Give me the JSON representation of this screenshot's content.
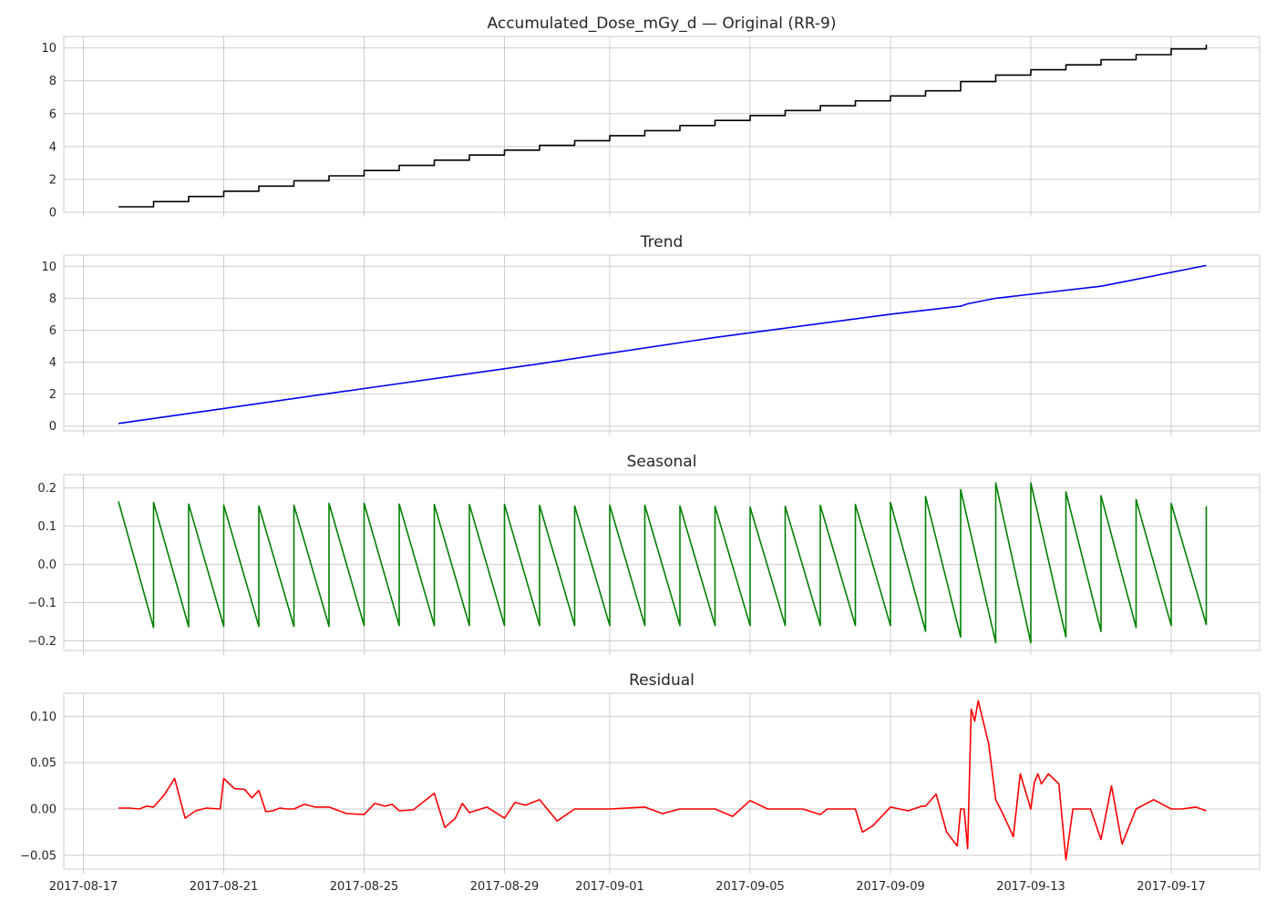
{
  "chart_data": [
    {
      "type": "line",
      "id": "original",
      "title": "Accumulated_Dose_mGy_d — Original (RR-9)",
      "color": "#000000",
      "ylim": [
        0,
        10.7
      ],
      "yticks": [
        0,
        2,
        4,
        6,
        8,
        10
      ],
      "ytick_labels": [
        "0",
        "2",
        "4",
        "6",
        "8",
        "10"
      ],
      "model": "step",
      "steps": [
        0.33,
        0.65,
        0.96,
        1.28,
        1.59,
        1.91,
        2.22,
        2.54,
        2.85,
        3.17,
        3.48,
        3.78,
        4.07,
        4.36,
        4.66,
        4.97,
        5.28,
        5.59,
        5.89,
        6.19,
        6.48,
        6.78,
        7.08,
        7.39,
        7.95,
        8.35,
        8.67,
        8.97,
        9.28,
        9.59,
        9.94,
        10.2
      ]
    },
    {
      "type": "line",
      "id": "trend",
      "title": "Trend",
      "color": "#0000ee",
      "ylim": [
        -0.3,
        10.7
      ],
      "yticks": [
        0,
        2,
        4,
        6,
        8,
        10
      ],
      "ytick_labels": [
        "0",
        "2",
        "4",
        "6",
        "8",
        "10"
      ],
      "model": "points",
      "points_x_days": [
        0,
        3,
        7,
        12,
        17,
        22,
        24,
        24.2,
        25,
        26,
        28,
        31
      ],
      "points_y": [
        0.17,
        1.1,
        2.35,
        3.9,
        5.55,
        7.0,
        7.5,
        7.65,
        8.0,
        8.25,
        8.75,
        10.05
      ]
    },
    {
      "type": "line",
      "id": "seasonal",
      "title": "Seasonal",
      "color": "#008000",
      "ylim": [
        -0.225,
        0.235
      ],
      "yticks": [
        0.2,
        0.1,
        0.0,
        -0.1,
        -0.2
      ],
      "ytick_labels": [
        "0.2",
        "0.1",
        "0.0",
        "−0.1",
        "−0.2"
      ],
      "model": "sawtooth",
      "cycles": [
        {
          "hi": 0.165,
          "lo": -0.165
        },
        {
          "hi": 0.162,
          "lo": -0.163
        },
        {
          "hi": 0.158,
          "lo": -0.162
        },
        {
          "hi": 0.155,
          "lo": -0.162
        },
        {
          "hi": 0.153,
          "lo": -0.162
        },
        {
          "hi": 0.155,
          "lo": -0.162
        },
        {
          "hi": 0.16,
          "lo": -0.16
        },
        {
          "hi": 0.16,
          "lo": -0.16
        },
        {
          "hi": 0.158,
          "lo": -0.16
        },
        {
          "hi": 0.157,
          "lo": -0.16
        },
        {
          "hi": 0.157,
          "lo": -0.16
        },
        {
          "hi": 0.157,
          "lo": -0.16
        },
        {
          "hi": 0.155,
          "lo": -0.16
        },
        {
          "hi": 0.153,
          "lo": -0.16
        },
        {
          "hi": 0.155,
          "lo": -0.16
        },
        {
          "hi": 0.155,
          "lo": -0.16
        },
        {
          "hi": 0.153,
          "lo": -0.16
        },
        {
          "hi": 0.152,
          "lo": -0.16
        },
        {
          "hi": 0.15,
          "lo": -0.16
        },
        {
          "hi": 0.152,
          "lo": -0.16
        },
        {
          "hi": 0.155,
          "lo": -0.16
        },
        {
          "hi": 0.157,
          "lo": -0.16
        },
        {
          "hi": 0.162,
          "lo": -0.175
        },
        {
          "hi": 0.178,
          "lo": -0.19
        },
        {
          "hi": 0.196,
          "lo": -0.205
        },
        {
          "hi": 0.213,
          "lo": -0.205
        },
        {
          "hi": 0.213,
          "lo": -0.19
        },
        {
          "hi": 0.19,
          "lo": -0.175
        },
        {
          "hi": 0.18,
          "lo": -0.165
        },
        {
          "hi": 0.17,
          "lo": -0.16
        },
        {
          "hi": 0.16,
          "lo": -0.157
        }
      ],
      "final_value": 0.152
    },
    {
      "type": "line",
      "id": "residual",
      "title": "Residual",
      "color": "#ff0000",
      "ylim": [
        -0.065,
        0.125
      ],
      "yticks": [
        0.1,
        0.05,
        0.0,
        -0.05
      ],
      "ytick_labels": [
        "0.10",
        "0.05",
        "0.00",
        "−0.05"
      ],
      "model": "points",
      "points_x_days": [
        0,
        0.3,
        0.6,
        0.8,
        1.0,
        1.3,
        1.6,
        1.9,
        2.2,
        2.5,
        2.9,
        3.0,
        3.3,
        3.6,
        3.8,
        4.0,
        4.2,
        4.4,
        4.6,
        4.8,
        5.0,
        5.3,
        5.6,
        6.0,
        6.5,
        7.0,
        7.3,
        7.6,
        7.8,
        8.0,
        8.4,
        9.0,
        9.3,
        9.6,
        9.8,
        10.0,
        10.5,
        11.0,
        11.3,
        11.6,
        12.0,
        12.5,
        13.0,
        14.0,
        15.0,
        15.5,
        16.0,
        16.5,
        17.0,
        17.5,
        18.0,
        18.5,
        19.0,
        19.5,
        20.0,
        20.2,
        20.5,
        21.0,
        21.2,
        21.5,
        22.0,
        22.5,
        22.9,
        23.0,
        23.3,
        23.6,
        23.9,
        24.0,
        24.1,
        24.2,
        24.3,
        24.4,
        24.5,
        24.8,
        25.0,
        25.2,
        25.5,
        25.7,
        26.0,
        26.1,
        26.2,
        26.3,
        26.5,
        26.8,
        27.0,
        27.2,
        27.5,
        27.7,
        28.0,
        28.3,
        28.6,
        29.0,
        29.5,
        29.9,
        30.0,
        30.3,
        30.7,
        31.0
      ],
      "points_y": [
        0.001,
        0.001,
        0.0,
        0.003,
        0.002,
        0.015,
        0.033,
        -0.01,
        -0.002,
        0.001,
        0.0,
        0.033,
        0.022,
        0.021,
        0.012,
        0.02,
        -0.003,
        -0.002,
        0.001,
        0.0,
        0.0,
        0.005,
        0.002,
        0.002,
        -0.005,
        -0.006,
        0.006,
        0.003,
        0.005,
        -0.002,
        -0.001,
        0.017,
        -0.02,
        -0.01,
        0.006,
        -0.004,
        0.002,
        -0.01,
        0.007,
        0.004,
        0.01,
        -0.013,
        0.0,
        0.0,
        0.002,
        -0.005,
        0.0,
        0.0,
        0.0,
        -0.008,
        0.009,
        0.0,
        0.0,
        0.0,
        -0.006,
        0.0,
        0.0,
        0.0,
        -0.025,
        -0.018,
        0.002,
        -0.002,
        0.003,
        0.003,
        0.016,
        -0.025,
        -0.04,
        0.0,
        0.0,
        -0.043,
        0.108,
        0.095,
        0.117,
        0.07,
        0.01,
        -0.005,
        -0.03,
        0.038,
        0.0,
        0.028,
        0.038,
        0.027,
        0.038,
        0.027,
        -0.055,
        0.0,
        0.0,
        0.0,
        -0.033,
        0.025,
        -0.038,
        0.0,
        0.01,
        0.002,
        0.0,
        0.0,
        0.002,
        -0.002
      ]
    }
  ],
  "x_axis": {
    "tick_labels": [
      "2017-08-17",
      "2017-08-21",
      "2017-08-25",
      "2017-08-29",
      "2017-09-01",
      "2017-09-05",
      "2017-09-09",
      "2017-09-13",
      "2017-09-17"
    ],
    "tick_positions_days_from_start": [
      -1,
      3,
      7,
      11,
      14,
      18,
      22,
      26,
      30
    ],
    "start_date": "2017-08-18",
    "span_days": 31
  }
}
